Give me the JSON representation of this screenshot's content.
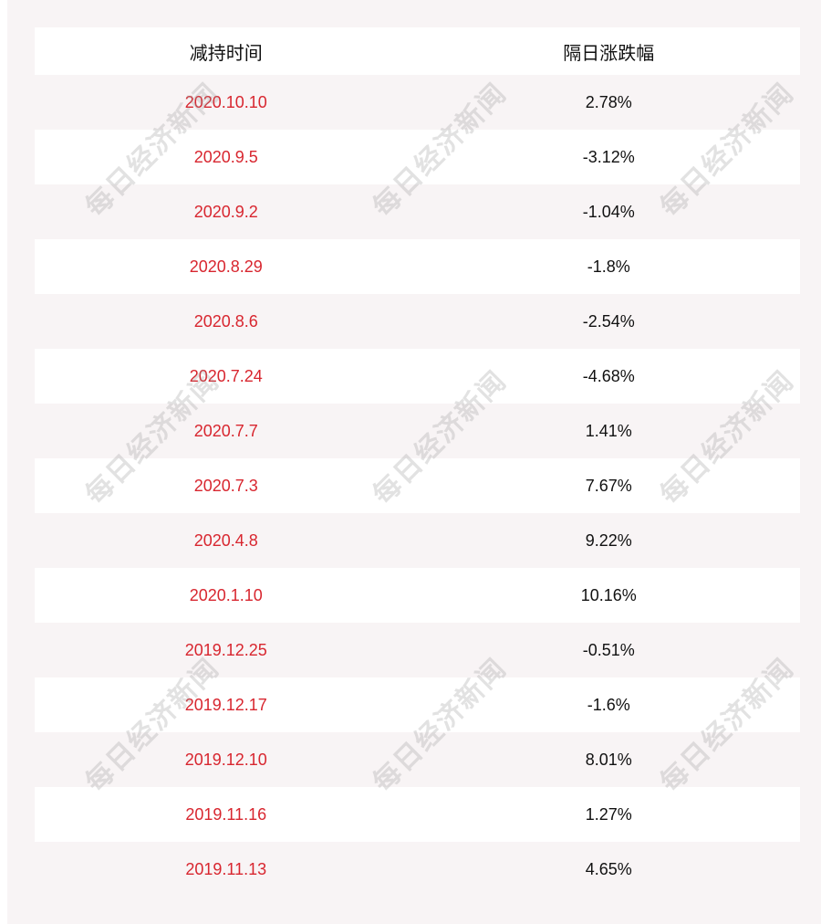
{
  "table": {
    "headers": [
      "减持时间",
      "隔日涨跌幅"
    ],
    "rows": [
      [
        "2020.10.10",
        "2.78%"
      ],
      [
        "2020.9.5",
        "-3.12%"
      ],
      [
        "2020.9.2",
        "-1.04%"
      ],
      [
        "2020.8.29",
        "-1.8%"
      ],
      [
        "2020.8.6",
        "-2.54%"
      ],
      [
        "2020.7.24",
        "-4.68%"
      ],
      [
        "2020.7.7",
        "1.41%"
      ],
      [
        "2020.7.3",
        "7.67%"
      ],
      [
        "2020.4.8",
        "9.22%"
      ],
      [
        "2020.1.10",
        "10.16%"
      ],
      [
        "2019.12.25",
        "-0.51%"
      ],
      [
        "2019.12.17",
        "-1.6%"
      ],
      [
        "2019.12.10",
        "8.01%"
      ],
      [
        "2019.11.16",
        "1.27%"
      ],
      [
        "2019.11.13",
        "4.65%"
      ]
    ]
  },
  "watermark": "每日经济新闻",
  "colors": {
    "date": "#d8262f",
    "panel": "#f8f4f5"
  }
}
